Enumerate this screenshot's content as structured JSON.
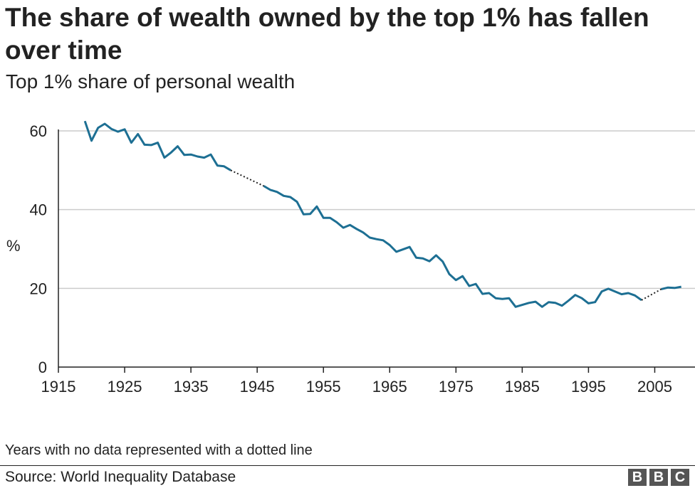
{
  "title": "The share of wealth owned by the top 1% has fallen over time",
  "subtitle": "Top 1% share of personal wealth",
  "note": "Years with no data represented with a dotted line",
  "source": "Source: World Inequality Database",
  "logo": [
    "B",
    "B",
    "C"
  ],
  "colors": {
    "line": "#1d6f93",
    "grid": "#cccccc",
    "axis": "#222222"
  },
  "chart_data": {
    "type": "line",
    "title": "Top 1% share of personal wealth",
    "xlabel": "",
    "ylabel": "%",
    "xlim": [
      1915,
      2010
    ],
    "ylim": [
      0,
      60
    ],
    "x_ticks": [
      "1915",
      "1925",
      "1935",
      "1945",
      "1955",
      "1965",
      "1975",
      "1985",
      "1995",
      "2005"
    ],
    "y_ticks": [
      "0",
      "20",
      "40",
      "60"
    ],
    "grid": "horizontal",
    "missing_years_style": "dotted line",
    "series": [
      {
        "x": [
          1919,
          1920,
          1921,
          1922,
          1923,
          1924,
          1925,
          1926,
          1927,
          1928,
          1929,
          1930,
          1931,
          1932,
          1933,
          1934,
          1935,
          1936,
          1937,
          1938,
          1939,
          1940,
          1941,
          1946,
          1947,
          1948,
          1949,
          1950,
          1951,
          1952,
          1953,
          1954,
          1955,
          1956,
          1957,
          1958,
          1959,
          1960,
          1961,
          1962,
          1963,
          1964,
          1965,
          1966,
          1967,
          1968,
          1969,
          1970,
          1971,
          1972,
          1973,
          1974,
          1975,
          1976,
          1977,
          1978,
          1979,
          1980,
          1981,
          1982,
          1983,
          1984,
          1985,
          1986,
          1987,
          1988,
          1989,
          1990,
          1991,
          1992,
          1993,
          1994,
          1995,
          1996,
          1997,
          1998,
          1999,
          2000,
          2001,
          2002,
          2003,
          2006,
          2007,
          2008,
          2009
        ],
        "values": [
          62.5,
          57.5,
          60.8,
          61.8,
          60.5,
          59.8,
          60.4,
          57.0,
          59.2,
          56.5,
          56.4,
          57.0,
          53.2,
          54.5,
          56.1,
          53.9,
          54.0,
          53.5,
          53.2,
          54.0,
          51.2,
          51.0,
          50.0,
          46.0,
          45.0,
          44.5,
          43.5,
          43.2,
          42.0,
          38.8,
          38.9,
          40.8,
          37.9,
          37.9,
          36.8,
          35.4,
          36.1,
          35.1,
          34.2,
          32.9,
          32.5,
          32.2,
          31.0,
          29.3,
          29.9,
          30.5,
          27.8,
          27.6,
          26.9,
          28.4,
          26.8,
          23.6,
          22.1,
          23.1,
          20.6,
          21.1,
          18.6,
          18.8,
          17.5,
          17.3,
          17.5,
          15.3,
          15.8,
          16.3,
          16.6,
          15.3,
          16.5,
          16.3,
          15.6,
          16.9,
          18.3,
          17.5,
          16.2,
          16.5,
          19.2,
          19.9,
          19.2,
          18.5,
          18.8,
          18.2,
          17.0,
          19.8,
          20.2,
          20.1,
          20.4
        ]
      }
    ],
    "gaps": [
      [
        1941,
        1946
      ],
      [
        2003,
        2006
      ],
      [
        2007,
        2008
      ]
    ]
  }
}
